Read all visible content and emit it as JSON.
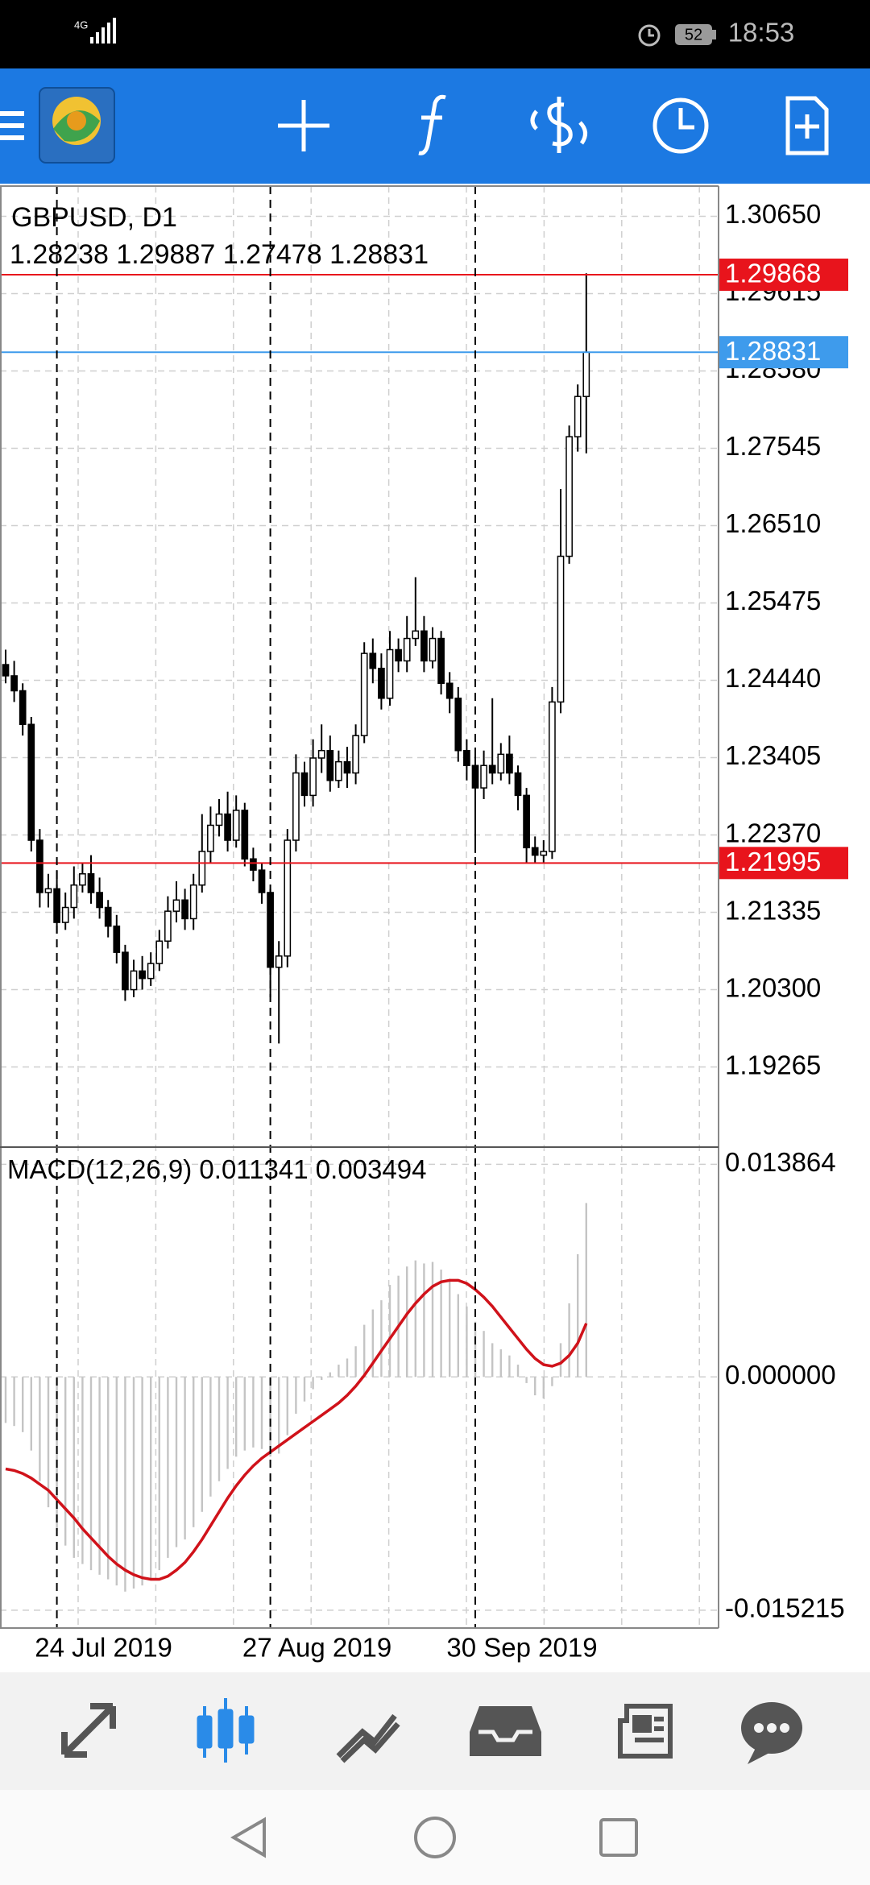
{
  "status_bar": {
    "network": "4G",
    "battery": "52",
    "time": "18:53"
  },
  "chart_data": [
    {
      "type": "candlestick",
      "title": "GBPUSD, D1",
      "open": [
        1.2465,
        1.245,
        1.243,
        1.2385,
        1.223,
        1.216,
        1.2165,
        1.212,
        1.214,
        1.217,
        1.2185,
        1.216,
        1.214,
        1.2115,
        1.208,
        1.203,
        1.2055,
        1.2045,
        1.2065,
        1.2095,
        1.2135,
        1.215,
        1.2125,
        1.217,
        1.2215,
        1.225,
        1.2265,
        1.223,
        1.227,
        1.2205,
        1.219,
        1.216,
        1.206,
        1.2075,
        1.223,
        1.232,
        1.229,
        1.234,
        1.235,
        1.231,
        1.2335,
        1.232,
        1.237,
        1.248,
        1.246,
        1.242,
        1.2485,
        1.247,
        1.25,
        1.251,
        1.247,
        1.25,
        1.244,
        1.242,
        1.235,
        1.233,
        1.23,
        1.233,
        1.232,
        1.2345,
        1.232,
        1.229,
        1.222,
        1.221,
        1.2215,
        1.2415,
        1.261,
        1.277,
        1.28238
      ],
      "high": [
        1.2485,
        1.247,
        1.244,
        1.2395,
        1.2245,
        1.2185,
        1.219,
        1.216,
        1.2195,
        1.22,
        1.221,
        1.218,
        1.215,
        1.213,
        1.209,
        1.207,
        1.2075,
        1.208,
        1.211,
        1.2155,
        1.2175,
        1.2165,
        1.2185,
        1.2265,
        1.2275,
        1.2285,
        1.2295,
        1.229,
        1.228,
        1.222,
        1.22,
        1.2165,
        1.2095,
        1.2245,
        1.2345,
        1.2335,
        1.2365,
        1.2385,
        1.237,
        1.235,
        1.2355,
        1.2385,
        1.2495,
        1.25,
        1.248,
        1.251,
        1.25,
        1.253,
        1.2582,
        1.253,
        1.2515,
        1.251,
        1.2455,
        1.2435,
        1.2365,
        1.2345,
        1.235,
        1.242,
        1.236,
        1.237,
        1.233,
        1.23,
        1.2235,
        1.223,
        1.2435,
        1.27,
        1.2785,
        1.284,
        1.29887
      ],
      "low": [
        1.244,
        1.2415,
        1.237,
        1.2215,
        1.214,
        1.214,
        1.2105,
        1.211,
        1.2125,
        1.216,
        1.2145,
        1.2125,
        1.21,
        1.2065,
        1.2015,
        1.202,
        1.203,
        1.2035,
        1.2055,
        1.2085,
        1.212,
        1.211,
        1.211,
        1.216,
        1.22,
        1.2235,
        1.2215,
        1.222,
        1.2195,
        1.2175,
        1.2145,
        1.202,
        1.1958,
        1.206,
        1.2215,
        1.2275,
        1.2275,
        1.232,
        1.2295,
        1.23,
        1.23,
        1.2305,
        1.236,
        1.244,
        1.2405,
        1.241,
        1.2455,
        1.2455,
        1.249,
        1.2455,
        1.246,
        1.2425,
        1.24,
        1.2335,
        1.231,
        1.2213,
        1.2285,
        1.2305,
        1.231,
        1.2305,
        1.227,
        1.22,
        1.21995,
        1.22,
        1.2205,
        1.24,
        1.26,
        1.275,
        1.27478
      ],
      "close": [
        1.245,
        1.243,
        1.2385,
        1.223,
        1.216,
        1.2165,
        1.212,
        1.214,
        1.217,
        1.2185,
        1.216,
        1.214,
        1.2115,
        1.208,
        1.203,
        1.2055,
        1.2045,
        1.2065,
        1.2095,
        1.2135,
        1.215,
        1.2125,
        1.217,
        1.2215,
        1.225,
        1.2265,
        1.223,
        1.227,
        1.2205,
        1.219,
        1.216,
        1.206,
        1.2075,
        1.223,
        1.232,
        1.229,
        1.234,
        1.235,
        1.231,
        1.2335,
        1.232,
        1.237,
        1.248,
        1.246,
        1.242,
        1.2485,
        1.247,
        1.25,
        1.251,
        1.247,
        1.25,
        1.244,
        1.242,
        1.235,
        1.233,
        1.23,
        1.233,
        1.232,
        1.2345,
        1.232,
        1.229,
        1.222,
        1.221,
        1.2215,
        1.2415,
        1.261,
        1.277,
        1.28238,
        1.28831
      ],
      "ylim": [
        1.18193,
        1.31054
      ],
      "yticks": [
        {
          "value": 1.3065,
          "label": "1.30650"
        },
        1.29615,
        {
          "value": 1.2858,
          "label": "1.28580"
        },
        1.27545,
        {
          "value": 1.2651,
          "label": "1.26510"
        },
        1.25475,
        {
          "value": 1.2444,
          "label": "1.24440"
        },
        1.23405,
        {
          "value": 1.2237,
          "label": "1.22370"
        },
        1.21335,
        {
          "value": 1.203,
          "label": "1.20300"
        },
        1.19265
      ],
      "hlines": [
        {
          "value": 1.29868,
          "color": "#e8141c"
        },
        {
          "value": 1.21995,
          "color": "#e8141c"
        }
      ],
      "bid_color": "#3e9bec",
      "grid": true
    },
    {
      "type": "bar",
      "categories": [
        null,
        null,
        null,
        null,
        null,
        null,
        "24 Jul 2019",
        null,
        null,
        null,
        null,
        null,
        null,
        null,
        null,
        null,
        null,
        null,
        null,
        null,
        null,
        null,
        null,
        null,
        null,
        null,
        null,
        null,
        null,
        null,
        null,
        "27 Aug 2019",
        null,
        null,
        null,
        null,
        null,
        null,
        null,
        null,
        null,
        null,
        null,
        null,
        null,
        null,
        null,
        null,
        null,
        null,
        null,
        null,
        null,
        null,
        null,
        "30 Sep 2019",
        null,
        null,
        null,
        null,
        null,
        null,
        null,
        null,
        null,
        null,
        null,
        null,
        null
      ],
      "series": [
        {
          "name": "MACD(12,26,9)",
          "type": "bar",
          "color": "#c4c4c4",
          "values": [
            -0.003,
            -0.0032,
            -0.0036,
            -0.0048,
            -0.0068,
            -0.0085,
            -0.01,
            -0.011,
            -0.0118,
            -0.0122,
            -0.0126,
            -0.0129,
            -0.0132,
            -0.0136,
            -0.014,
            -0.0138,
            -0.0136,
            -0.0132,
            -0.0126,
            -0.0118,
            -0.0111,
            -0.0106,
            -0.0098,
            -0.0088,
            -0.0078,
            -0.0068,
            -0.006,
            -0.0052,
            -0.0048,
            -0.0046,
            -0.0047,
            -0.0052,
            -0.005,
            -0.0038,
            -0.0024,
            -0.0016,
            -0.0008,
            -0.0002,
            0.0003,
            0.0008,
            0.0012,
            0.002,
            0.0034,
            0.0044,
            0.005,
            0.006,
            0.0066,
            0.0072,
            0.0076,
            0.0074,
            0.0075,
            0.007,
            0.0064,
            0.0054,
            0.0046,
            0.0036,
            0.003,
            0.0022,
            0.0018,
            0.0014,
            0.0008,
            -0.0004,
            -0.0012,
            -0.0014,
            -0.0006,
            0.0022,
            0.0048,
            0.008,
            0.011341
          ]
        },
        {
          "type": "line",
          "color": "#d0121a",
          "values": [
            -0.006,
            -0.0061,
            -0.0063,
            -0.0066,
            -0.007,
            -0.0074,
            -0.008,
            -0.0086,
            -0.0092,
            -0.0099,
            -0.0105,
            -0.0111,
            -0.0117,
            -0.0122,
            -0.0126,
            -0.0129,
            -0.0131,
            -0.0132,
            -0.0132,
            -0.013,
            -0.0126,
            -0.0121,
            -0.0114,
            -0.0106,
            -0.0097,
            -0.0088,
            -0.0079,
            -0.0071,
            -0.0064,
            -0.0058,
            -0.0053,
            -0.0049,
            -0.0045,
            -0.0041,
            -0.0037,
            -0.0033,
            -0.0029,
            -0.0025,
            -0.0021,
            -0.0017,
            -0.0012,
            -0.0006,
            0.0001,
            0.0009,
            0.0017,
            0.0025,
            0.0033,
            0.0041,
            0.0048,
            0.0054,
            0.0059,
            0.0062,
            0.0063,
            0.0063,
            0.0061,
            0.0057,
            0.0052,
            0.0046,
            0.0039,
            0.0032,
            0.0025,
            0.0018,
            0.0012,
            0.0008,
            0.0007,
            0.0009,
            0.0014,
            0.0022,
            0.003494
          ]
        }
      ],
      "ylim": [
        -0.016376,
        0.014988
      ],
      "yticks": [
        0.013864,
        {
          "value": 0,
          "label": "0.000000"
        },
        -0.015215
      ],
      "grid": true
    }
  ]
}
